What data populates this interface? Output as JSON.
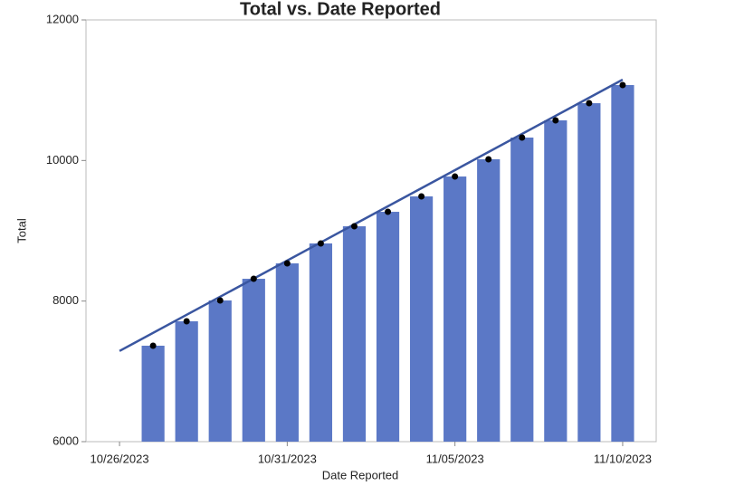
{
  "chart_data": {
    "type": "bar",
    "title": "Total vs. Date Reported",
    "xlabel": "Date Reported",
    "ylabel": "Total",
    "x": [
      "10/27/2023",
      "10/28/2023",
      "10/29/2023",
      "10/30/2023",
      "10/31/2023",
      "11/01/2023",
      "11/02/2023",
      "11/03/2023",
      "11/04/2023",
      "11/05/2023",
      "11/06/2023",
      "11/07/2023",
      "11/08/2023",
      "11/09/2023",
      "11/10/2023"
    ],
    "series": [
      {
        "name": "Total",
        "color": "#5b78c6",
        "values": [
          7365,
          7712,
          8009,
          8317,
          8536,
          8820,
          9064,
          9270,
          9489,
          9772,
          10017,
          10326,
          10571,
          10815,
          11073
        ]
      }
    ],
    "trendline": {
      "color": "#3a56a0",
      "x": [
        "10/26/2023",
        "11/10/2023"
      ],
      "y": [
        7290,
        11150
      ]
    },
    "xlim": [
      "10/25/2023",
      "11/11/2023"
    ],
    "xticks": [
      "10/26/2023",
      "10/31/2023",
      "11/05/2023",
      "11/10/2023"
    ],
    "ylim": [
      6000,
      12000
    ],
    "yticks": [
      6000,
      8000,
      10000,
      12000
    ]
  }
}
